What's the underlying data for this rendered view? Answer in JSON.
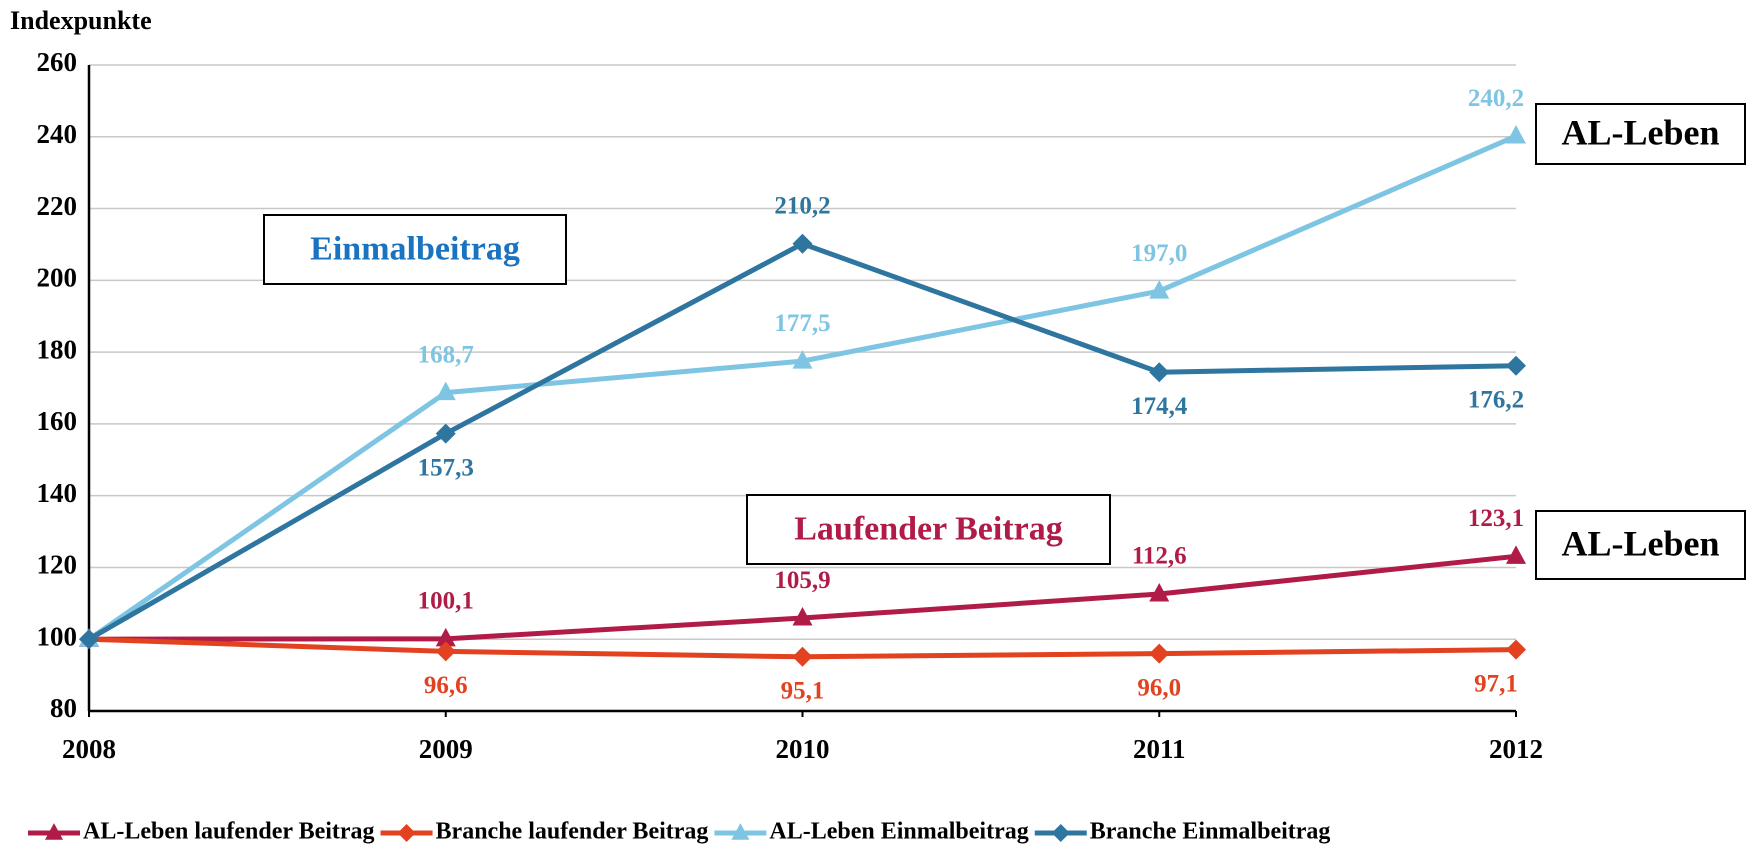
{
  "chart_data": {
    "type": "line",
    "ylabel": "Indexpunkte",
    "x": [
      2008,
      2009,
      2010,
      2011,
      2012
    ],
    "xlim": [
      2008,
      2012
    ],
    "xticks": [
      2008,
      2009,
      2010,
      2011,
      2012
    ],
    "ylim": [
      80,
      260
    ],
    "yticks": [
      80,
      100,
      120,
      140,
      160,
      180,
      200,
      220,
      240,
      260
    ],
    "grid": true,
    "legend": "bottom",
    "series": [
      {
        "name": "AL-Leben laufender Beitrag",
        "color": "#b01c47",
        "marker": "triangle",
        "values": [
          100,
          100.1,
          105.9,
          112.6,
          123.1
        ],
        "value_labels": [
          null,
          "100,1",
          "105,9",
          "112,6",
          "123,1"
        ]
      },
      {
        "name": "Branche laufender Beitrag",
        "color": "#e2421f",
        "marker": "diamond",
        "values": [
          100,
          96.6,
          95.1,
          96.0,
          97.1
        ],
        "value_labels": [
          null,
          "96,6",
          "95,1",
          "96,0",
          "97,1"
        ]
      },
      {
        "name": "AL-Leben Einmalbeitrag",
        "color": "#7ec4e3",
        "marker": "triangle",
        "values": [
          100,
          168.7,
          177.5,
          197.0,
          240.2
        ],
        "value_labels": [
          null,
          "168,7",
          "177,5",
          "197,0",
          "240,2"
        ]
      },
      {
        "name": "Branche Einmalbeitrag",
        "color": "#2e75a0",
        "marker": "diamond",
        "values": [
          100,
          157.3,
          210.2,
          174.4,
          176.2
        ],
        "value_labels": [
          null,
          "157,3",
          "210,2",
          "174,4",
          "176,2"
        ]
      }
    ],
    "annotations": [
      {
        "text": "Einmalbeitrag",
        "color": "#1a73c0"
      },
      {
        "text": "Laufender Beitrag",
        "color": "#b01c47"
      },
      {
        "text": "AL-Leben",
        "color": "#000000"
      },
      {
        "text": "AL-Leben",
        "color": "#000000"
      }
    ]
  }
}
